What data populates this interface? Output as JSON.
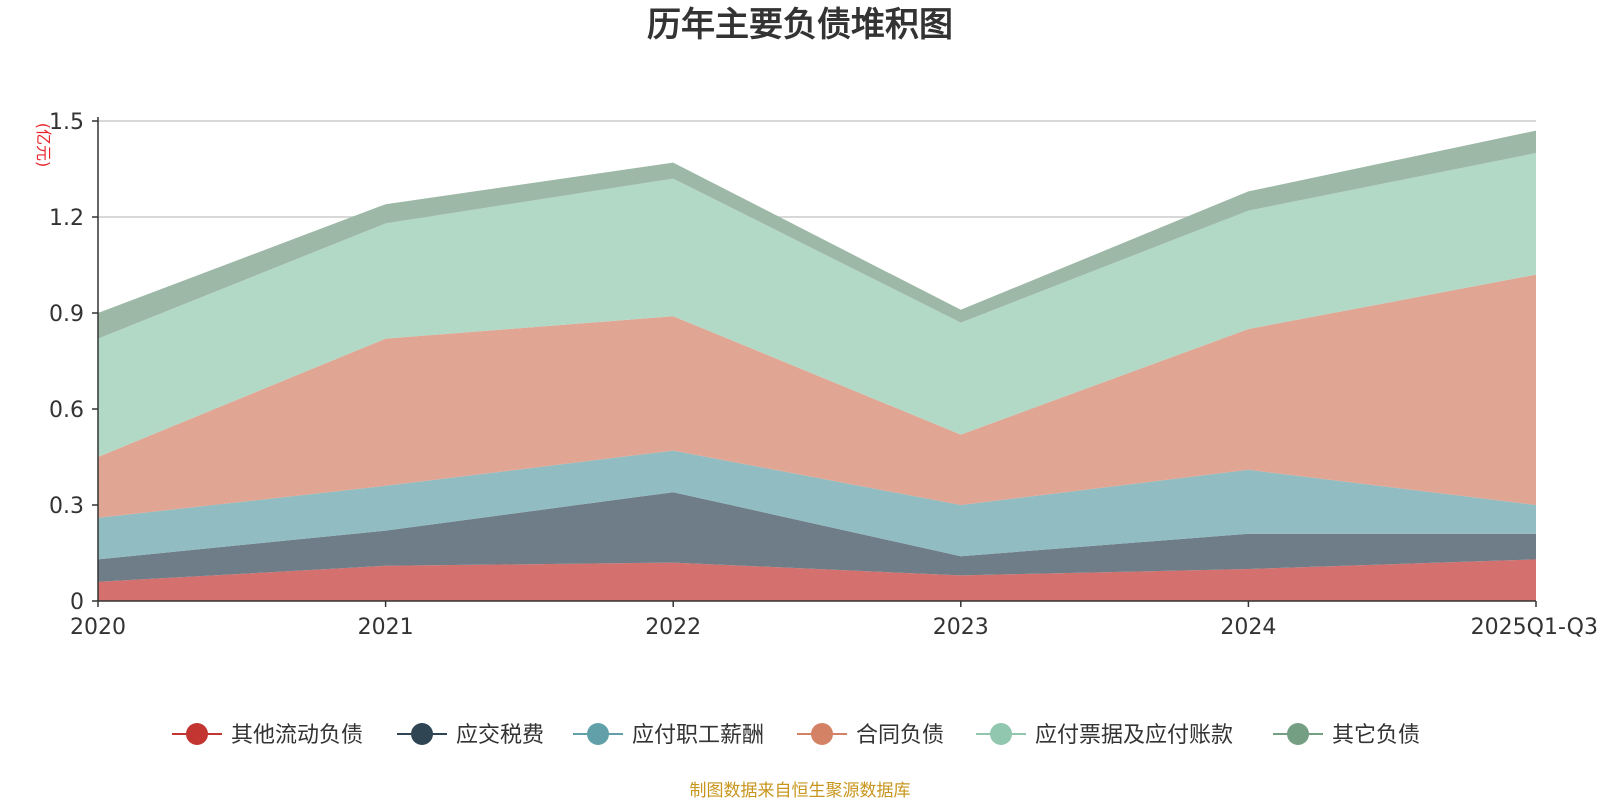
{
  "chart_data": {
    "type": "area",
    "stacked": true,
    "title": "历年主要负债堆积图",
    "ylabel": "(亿元)",
    "ylim": [
      0,
      1.5
    ],
    "yticks": [
      "0",
      "0.3",
      "0.6",
      "0.9",
      "1.2",
      "1.5"
    ],
    "categories": [
      "2020",
      "2021",
      "2022",
      "2023",
      "2024",
      "2025Q1-Q3"
    ],
    "grid": true,
    "legend_position": "bottom",
    "series": [
      {
        "name": "其他流动负债",
        "color": "#c23531",
        "fill": "#d4706d",
        "values": [
          0.06,
          0.11,
          0.12,
          0.08,
          0.1,
          0.13
        ]
      },
      {
        "name": "应交税费",
        "color": "#2f4554",
        "fill": "#6e7d88",
        "values": [
          0.07,
          0.11,
          0.22,
          0.06,
          0.11,
          0.08
        ]
      },
      {
        "name": "应付职工薪酬",
        "color": "#61a0a8",
        "fill": "#90bcc2",
        "values": [
          0.13,
          0.14,
          0.13,
          0.16,
          0.2,
          0.09
        ]
      },
      {
        "name": "合同负债",
        "color": "#d48265",
        "fill": "#e0a693",
        "values": [
          0.19,
          0.46,
          0.42,
          0.22,
          0.44,
          0.72
        ]
      },
      {
        "name": "应付票据及应付账款",
        "color": "#91c7ae",
        "fill": "#b2d8c6",
        "values": [
          0.37,
          0.36,
          0.43,
          0.35,
          0.37,
          0.38
        ]
      },
      {
        "name": "其它负债",
        "color": "#749f83",
        "fill": "#9db8a6",
        "values": [
          0.08,
          0.06,
          0.05,
          0.04,
          0.06,
          0.07
        ]
      }
    ]
  },
  "source_note": "制图数据来自恒生聚源数据库"
}
